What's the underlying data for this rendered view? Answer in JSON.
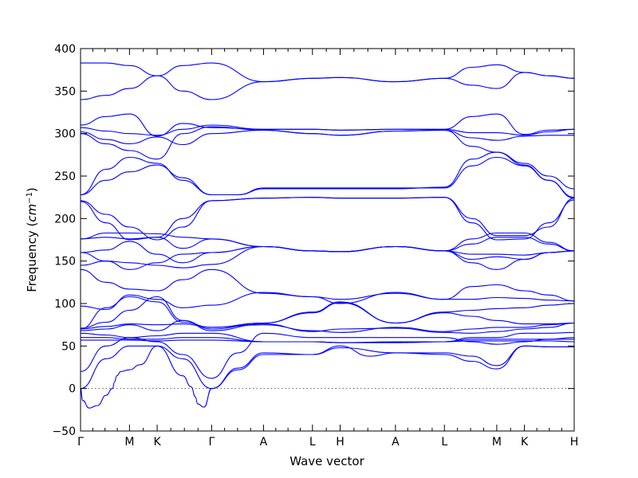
{
  "chart_data": {
    "type": "line",
    "xlabel": "Wave vector",
    "ylabel_text": "Frequency (",
    "ylabel_unit": "cm",
    "ylabel_exp": "−1",
    "ylabel_close": ")",
    "ylim": [
      -50,
      400
    ],
    "yticks": [
      -50,
      0,
      50,
      100,
      150,
      200,
      250,
      300,
      350,
      400
    ],
    "xlim": [
      0,
      11.6
    ],
    "zero_line": true,
    "grid": false,
    "line_color": "#0000ff",
    "high_symmetry_points": [
      {
        "label": "Γ",
        "x": 0
      },
      {
        "label": "M",
        "x": 1.15
      },
      {
        "label": "K",
        "x": 1.8
      },
      {
        "label": "Γ",
        "x": 3.08
      },
      {
        "label": "A",
        "x": 4.3
      },
      {
        "label": "L",
        "x": 5.45
      },
      {
        "label": "H",
        "x": 6.1
      },
      {
        "label": "A",
        "x": 7.4
      },
      {
        "label": "L",
        "x": 8.55
      },
      {
        "label": "M",
        "x": 9.78
      },
      {
        "label": "K",
        "x": 10.43
      },
      {
        "label": "H",
        "x": 11.6
      }
    ],
    "series": [
      {
        "x": [
          0,
          0.6,
          1.15,
          1.8,
          2.4,
          3.08,
          4.3,
          5.45,
          6.1,
          7.4,
          8.55,
          9.2,
          9.78,
          10.43,
          11.0,
          11.6
        ],
        "y": [
          383,
          383,
          380,
          368,
          380,
          383,
          361,
          365,
          366,
          361,
          365,
          378,
          381,
          372,
          368,
          365
        ]
      },
      {
        "x": [
          0,
          0.6,
          1.15,
          1.8,
          2.4,
          3.08,
          4.3,
          5.45,
          6.1,
          7.4,
          8.55,
          9.2,
          9.78,
          10.43,
          11.0,
          11.6
        ],
        "y": [
          340,
          345,
          353,
          368,
          350,
          340,
          361,
          365,
          366,
          361,
          365,
          357,
          353,
          372,
          368,
          365
        ]
      },
      {
        "x": [
          0,
          0.6,
          1.15,
          1.8,
          2.4,
          3.08,
          4.3,
          5.45,
          6.1,
          7.4,
          8.55,
          9.2,
          9.78,
          10.43,
          11.0,
          11.6
        ],
        "y": [
          310,
          320,
          323,
          297,
          312,
          307,
          305,
          305,
          304,
          305,
          305,
          320,
          323,
          299,
          304,
          305
        ]
      },
      {
        "x": [
          0,
          0.6,
          1.15,
          1.8,
          2.4,
          3.08,
          4.3,
          5.45,
          6.1,
          7.4,
          8.55,
          9.2,
          9.78,
          10.43,
          11.0,
          11.6
        ],
        "y": [
          307,
          303,
          300,
          298,
          305,
          310,
          305,
          305,
          304,
          305,
          305,
          301,
          301,
          298,
          302,
          305
        ]
      },
      {
        "x": [
          0,
          0.6,
          1.15,
          1.8,
          2.4,
          3.08,
          4.3,
          5.45,
          6.1,
          7.4,
          8.55,
          9.2,
          9.78,
          10.43,
          11.0,
          11.6
        ],
        "y": [
          302,
          293,
          288,
          296,
          287,
          300,
          304,
          300,
          298,
          303,
          304,
          295,
          292,
          297,
          298,
          298
        ]
      },
      {
        "x": [
          0,
          0.6,
          1.15,
          1.8,
          2.4,
          3.08,
          4.3,
          5.45,
          6.1,
          7.4,
          8.55,
          9.2,
          9.78,
          10.43,
          11.0,
          11.6
        ],
        "y": [
          300,
          288,
          280,
          270,
          300,
          308,
          304,
          300,
          298,
          303,
          304,
          285,
          278,
          263,
          245,
          225
        ]
      },
      {
        "x": [
          0,
          0.6,
          1.15,
          1.8,
          2.4,
          3.08,
          3.7,
          4.3,
          5.45,
          6.1,
          7.4,
          8.55,
          9.2,
          9.78,
          10.43,
          11.0,
          11.6
        ],
        "y": [
          228,
          258,
          272,
          265,
          245,
          228,
          228,
          235,
          235,
          235,
          235,
          237,
          270,
          278,
          265,
          250,
          235
        ]
      },
      {
        "x": [
          0,
          0.6,
          1.15,
          1.8,
          2.4,
          3.08,
          3.7,
          4.3,
          5.45,
          6.1,
          7.4,
          8.55,
          9.2,
          9.78,
          10.43,
          11.0,
          11.6
        ],
        "y": [
          228,
          245,
          255,
          263,
          248,
          228,
          228,
          236,
          236,
          236,
          236,
          236,
          262,
          272,
          262,
          245,
          224
        ]
      },
      {
        "x": [
          0,
          0.6,
          1.15,
          1.8,
          2.4,
          3.08,
          4.3,
          5.45,
          6.1,
          7.4,
          8.55,
          9.2,
          9.78,
          10.43,
          11.0,
          11.6
        ],
        "y": [
          221,
          205,
          190,
          175,
          190,
          221,
          224,
          225,
          224,
          224,
          225,
          200,
          180,
          180,
          190,
          224
        ]
      },
      {
        "x": [
          0,
          0.6,
          1.15,
          1.8,
          2.4,
          3.08,
          4.3,
          5.45,
          6.1,
          7.4,
          8.55,
          9.2,
          9.78,
          10.43,
          11.0,
          11.6
        ],
        "y": [
          220,
          195,
          175,
          178,
          200,
          221,
          224,
          225,
          224,
          224,
          225,
          195,
          175,
          176,
          195,
          222
        ]
      },
      {
        "x": [
          0,
          0.6,
          1.15,
          1.8,
          2.4,
          3.08,
          4.3,
          5.45,
          6.1,
          7.4,
          8.55,
          9.2,
          9.78,
          10.43,
          11.0,
          11.6
        ],
        "y": [
          176,
          183,
          183,
          182,
          178,
          176,
          167,
          162,
          161,
          167,
          162,
          176,
          183,
          183,
          172,
          162
        ]
      },
      {
        "x": [
          0,
          0.6,
          1.15,
          1.8,
          2.4,
          3.08,
          4.3,
          5.45,
          6.1,
          7.4,
          8.55,
          9.2,
          9.78,
          10.43,
          11.0,
          11.6
        ],
        "y": [
          176,
          178,
          176,
          178,
          165,
          176,
          167,
          162,
          161,
          167,
          162,
          170,
          178,
          178,
          170,
          162
        ]
      },
      {
        "x": [
          0,
          0.6,
          1.15,
          1.8,
          2.4,
          3.08,
          4.3,
          5.45,
          6.1,
          7.4,
          8.55,
          9.2,
          9.78,
          10.43,
          11.0,
          11.6
        ],
        "y": [
          160,
          163,
          173,
          158,
          148,
          160,
          167,
          162,
          161,
          167,
          162,
          158,
          158,
          157,
          160,
          162
        ]
      },
      {
        "x": [
          0,
          0.6,
          1.15,
          1.8,
          2.4,
          3.08,
          4.3,
          5.45,
          6.1,
          7.4,
          8.55,
          9.2,
          9.78,
          10.43,
          11.0,
          11.6
        ],
        "y": [
          160,
          150,
          140,
          148,
          158,
          160,
          167,
          162,
          161,
          167,
          162,
          148,
          140,
          152,
          160,
          162
        ]
      },
      {
        "x": [
          0,
          0.6,
          1.15,
          1.8,
          2.4,
          3.08,
          4.3,
          5.45,
          6.1,
          7.4,
          8.55,
          9.2,
          9.78,
          10.43,
          11.0,
          11.6
        ],
        "y": [
          145,
          150,
          148,
          145,
          142,
          146,
          167,
          162,
          161,
          167,
          162,
          152,
          155,
          152,
          160,
          162
        ]
      },
      {
        "x": [
          0,
          0.6,
          1.15,
          1.8,
          2.4,
          3.08,
          4.3,
          5.45,
          6.1,
          7.4,
          8.55,
          9.2,
          9.78,
          10.43,
          11.0,
          11.6
        ],
        "y": [
          140,
          125,
          117,
          115,
          128,
          140,
          112,
          108,
          105,
          112,
          105,
          120,
          122,
          115,
          110,
          103
        ]
      },
      {
        "x": [
          0,
          0.6,
          1.15,
          1.8,
          2.4,
          3.08,
          4.3,
          5.45,
          6.1,
          7.4,
          8.55,
          9.2,
          9.78,
          10.43,
          11.0,
          11.6
        ],
        "y": [
          97,
          93,
          110,
          105,
          95,
          98,
          113,
          108,
          100,
          113,
          105,
          105,
          107,
          106,
          104,
          103
        ]
      },
      {
        "x": [
          0,
          0.6,
          1.15,
          1.8,
          2.4,
          3.08,
          4.3,
          5.45,
          6.1,
          7.4,
          8.55,
          9.2,
          9.78,
          10.43,
          11.0,
          11.6
        ],
        "y": [
          70,
          95,
          108,
          102,
          78,
          72,
          77,
          90,
          102,
          77,
          90,
          92,
          94,
          95,
          98,
          100
        ]
      },
      {
        "x": [
          0,
          0.6,
          1.15,
          1.8,
          2.4,
          3.08,
          4.3,
          5.45,
          6.1,
          7.4,
          8.55,
          9.2,
          9.78,
          10.43,
          11.0,
          11.6
        ],
        "y": [
          71,
          78,
          92,
          108,
          80,
          70,
          77,
          89,
          101,
          77,
          89,
          85,
          80,
          76,
          76,
          77
        ]
      },
      {
        "x": [
          0,
          0.6,
          1.15,
          1.8,
          2.4,
          3.08,
          4.3,
          5.45,
          6.1,
          7.4,
          8.55,
          9.2,
          9.78,
          10.43,
          11.0,
          11.6
        ],
        "y": [
          70,
          73,
          76,
          75,
          76,
          72,
          75,
          68,
          66,
          72,
          67,
          70,
          72,
          72,
          75,
          77
        ]
      },
      {
        "x": [
          0,
          0.6,
          1.15,
          1.8,
          2.4,
          3.08,
          4.3,
          5.45,
          6.1,
          7.4,
          8.55,
          9.2,
          9.78,
          10.43,
          11.0,
          11.6
        ],
        "y": [
          68,
          70,
          75,
          68,
          80,
          68,
          76,
          67,
          70,
          71,
          66,
          65,
          67,
          70,
          72,
          77
        ]
      },
      {
        "x": [
          0,
          0.6,
          1.15,
          1.8,
          2.4,
          3.08,
          4.3,
          5.45,
          6.1,
          7.4,
          8.55,
          9.2,
          9.78,
          10.43,
          11.0,
          11.6
        ],
        "y": [
          65,
          63,
          60,
          62,
          65,
          65,
          55,
          55,
          54,
          55,
          55,
          60,
          60,
          65,
          65,
          66
        ]
      },
      {
        "x": [
          0,
          0.6,
          1.15,
          1.8,
          2.4,
          3.08,
          4.3,
          5.45,
          6.1,
          7.4,
          8.55,
          9.2,
          9.78,
          10.43,
          11.0,
          11.6
        ],
        "y": [
          60,
          60,
          58,
          58,
          60,
          60,
          55,
          55,
          54,
          54,
          55,
          58,
          58,
          58,
          58,
          58
        ]
      },
      {
        "x": [
          0,
          0.6,
          1.15,
          1.8,
          2.4,
          3.08,
          4.3,
          5.45,
          6.1,
          7.4,
          8.55,
          9.2,
          9.78,
          10.43,
          11.0,
          11.6
        ],
        "y": [
          57,
          57,
          57,
          56,
          57,
          57,
          55,
          55,
          54,
          54,
          55,
          56,
          56,
          56,
          56,
          55
        ]
      },
      {
        "x": [
          0,
          0.6,
          1.15,
          1.8,
          2.4,
          3.08,
          3.7,
          4.3,
          5.45,
          6.1,
          7.4,
          8.55,
          9.2,
          9.78,
          10.43,
          11.0,
          11.6
        ],
        "y": [
          20,
          50,
          60,
          55,
          40,
          12,
          42,
          65,
          60,
          60,
          60,
          60,
          55,
          52,
          55,
          58,
          60
        ]
      },
      {
        "x": [
          0,
          0.6,
          1.15,
          1.8,
          2.4,
          3.08,
          3.7,
          4.3,
          5.45,
          6.1,
          7.4,
          8.55,
          9.2,
          9.78,
          10.43,
          11.0,
          11.6
        ],
        "y": [
          0,
          35,
          50,
          50,
          35,
          0,
          24,
          42,
          40,
          48,
          42,
          40,
          32,
          23,
          50,
          49,
          49
        ]
      },
      {
        "x": [
          0,
          0.05,
          0.2,
          0.4,
          0.6,
          0.75,
          0.8,
          0.85,
          0.95,
          1.15,
          1.4,
          1.8,
          2.4,
          2.6,
          2.7,
          2.75,
          2.9,
          3.08,
          3.7,
          4.3,
          5.45,
          6.1,
          6.8,
          7.4,
          8.55,
          9.2,
          9.78,
          10.43,
          11.0,
          11.6
        ],
        "y": [
          0,
          -14,
          -23,
          -20,
          -8,
          0,
          8,
          15,
          20,
          22,
          28,
          50,
          15,
          2,
          -10,
          -18,
          -22,
          0,
          22,
          40,
          40,
          50,
          38,
          42,
          42,
          38,
          27,
          50,
          49,
          49
        ]
      }
    ]
  }
}
